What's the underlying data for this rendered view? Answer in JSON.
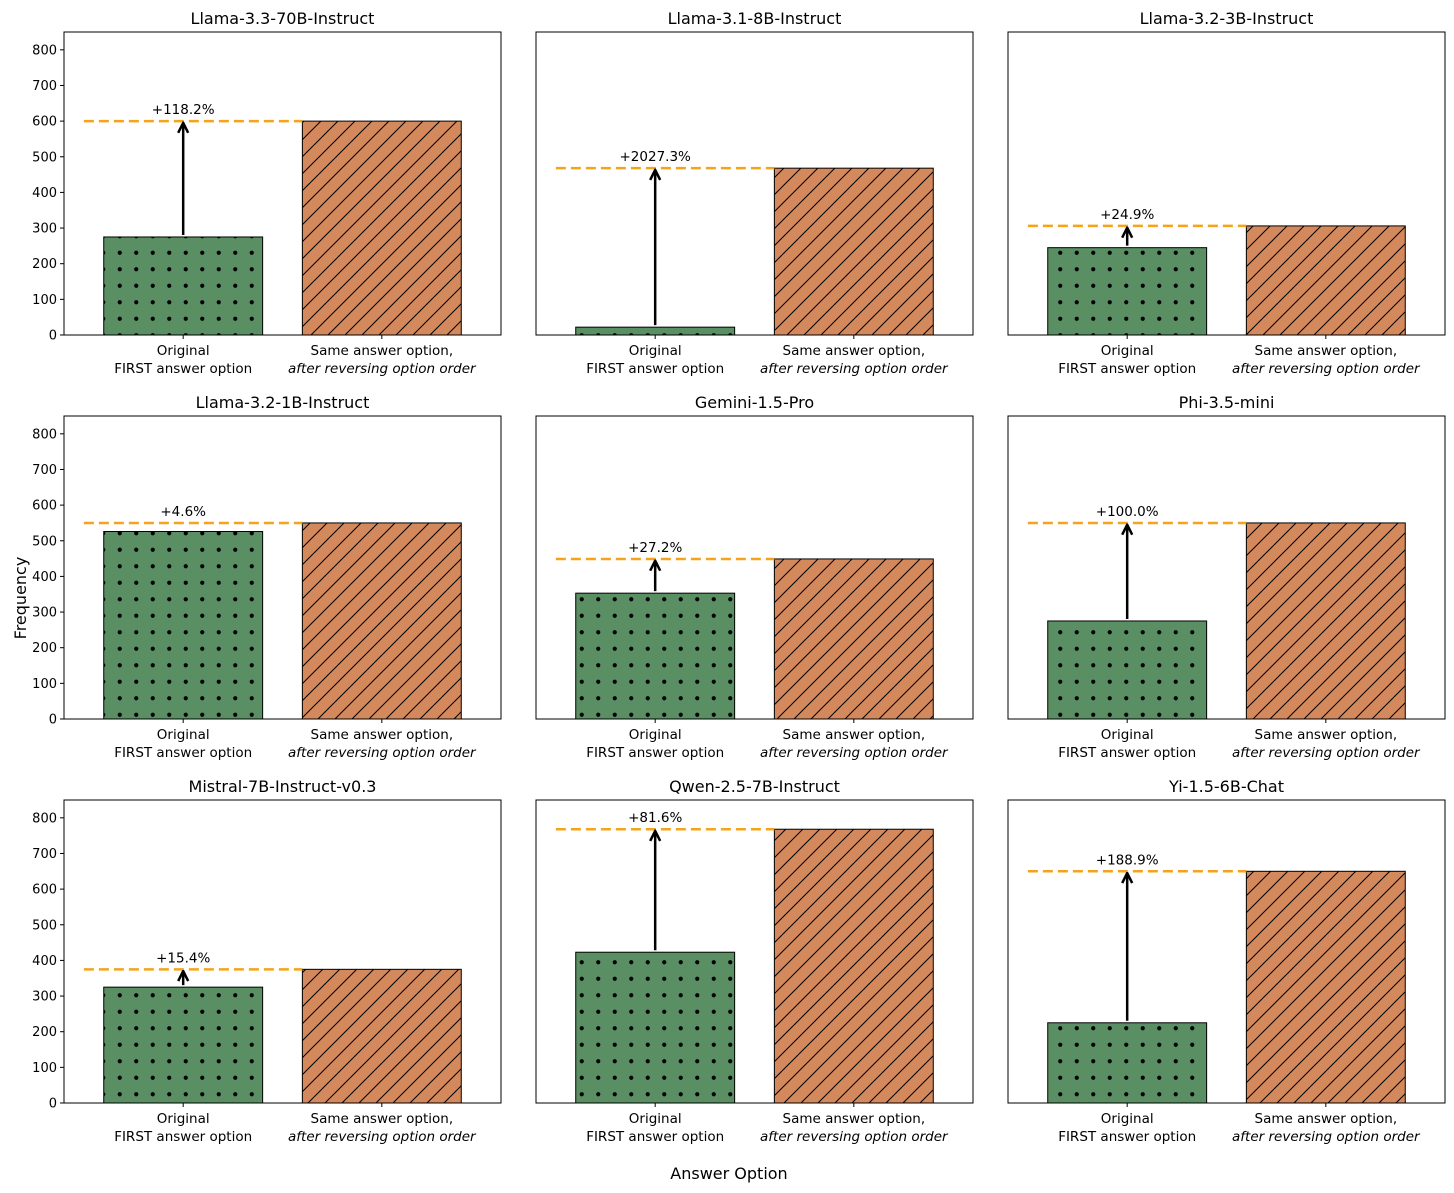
{
  "figure": {
    "ylabel": "Frequency",
    "xlabel": "Answer Option"
  },
  "colors": {
    "original_bar": "#5a8f63",
    "reversed_bar": "#d4895d",
    "reference_line": "#f5a31b",
    "arrow": "#000000"
  },
  "chart_data": [
    {
      "type": "bar",
      "title": "Llama-3.3-70B-Instruct",
      "categories": [
        "Original\nFIRST answer option",
        "Same answer option,\nafter reversing option order"
      ],
      "values": [
        275,
        600
      ],
      "annotation": "+118.2%",
      "ylim": [
        0,
        850
      ],
      "yticks": [
        0,
        100,
        200,
        300,
        400,
        500,
        600,
        700,
        800
      ]
    },
    {
      "type": "bar",
      "title": "Llama-3.1-8B-Instruct",
      "categories": [
        "Original\nFIRST answer option",
        "Same answer option,\nafter reversing option order"
      ],
      "values": [
        22,
        468
      ],
      "annotation": "+2027.3%",
      "ylim": [
        0,
        850
      ],
      "yticks": [
        0,
        100,
        200,
        300,
        400,
        500,
        600,
        700,
        800
      ]
    },
    {
      "type": "bar",
      "title": "Llama-3.2-3B-Instruct",
      "categories": [
        "Original\nFIRST answer option",
        "Same answer option,\nafter reversing option order"
      ],
      "values": [
        245,
        306
      ],
      "annotation": "+24.9%",
      "ylim": [
        0,
        850
      ],
      "yticks": [
        0,
        100,
        200,
        300,
        400,
        500,
        600,
        700,
        800
      ]
    },
    {
      "type": "bar",
      "title": "Llama-3.2-1B-Instruct",
      "categories": [
        "Original\nFIRST answer option",
        "Same answer option,\nafter reversing option order"
      ],
      "values": [
        526,
        550
      ],
      "annotation": "+4.6%",
      "ylim": [
        0,
        850
      ],
      "yticks": [
        0,
        100,
        200,
        300,
        400,
        500,
        600,
        700,
        800
      ]
    },
    {
      "type": "bar",
      "title": "Gemini-1.5-Pro",
      "categories": [
        "Original\nFIRST answer option",
        "Same answer option,\nafter reversing option order"
      ],
      "values": [
        353,
        449
      ],
      "annotation": "+27.2%",
      "ylim": [
        0,
        850
      ],
      "yticks": [
        0,
        100,
        200,
        300,
        400,
        500,
        600,
        700,
        800
      ]
    },
    {
      "type": "bar",
      "title": "Phi-3.5-mini",
      "categories": [
        "Original\nFIRST answer option",
        "Same answer option,\nafter reversing option order"
      ],
      "values": [
        275,
        550
      ],
      "annotation": "+100.0%",
      "ylim": [
        0,
        850
      ],
      "yticks": [
        0,
        100,
        200,
        300,
        400,
        500,
        600,
        700,
        800
      ]
    },
    {
      "type": "bar",
      "title": "Mistral-7B-Instruct-v0.3",
      "categories": [
        "Original\nFIRST answer option",
        "Same answer option,\nafter reversing option order"
      ],
      "values": [
        325,
        375
      ],
      "annotation": "+15.4%",
      "ylim": [
        0,
        850
      ],
      "yticks": [
        0,
        100,
        200,
        300,
        400,
        500,
        600,
        700,
        800
      ]
    },
    {
      "type": "bar",
      "title": "Qwen-2.5-7B-Instruct",
      "categories": [
        "Original\nFIRST answer option",
        "Same answer option,\nafter reversing option order"
      ],
      "values": [
        423,
        768
      ],
      "annotation": "+81.6%",
      "ylim": [
        0,
        850
      ],
      "yticks": [
        0,
        100,
        200,
        300,
        400,
        500,
        600,
        700,
        800
      ]
    },
    {
      "type": "bar",
      "title": "Yi-1.5-6B-Chat",
      "categories": [
        "Original\nFIRST answer option",
        "Same answer option,\nafter reversing option order"
      ],
      "values": [
        225,
        650
      ],
      "annotation": "+188.9%",
      "ylim": [
        0,
        850
      ],
      "yticks": [
        0,
        100,
        200,
        300,
        400,
        500,
        600,
        700,
        800
      ]
    }
  ]
}
